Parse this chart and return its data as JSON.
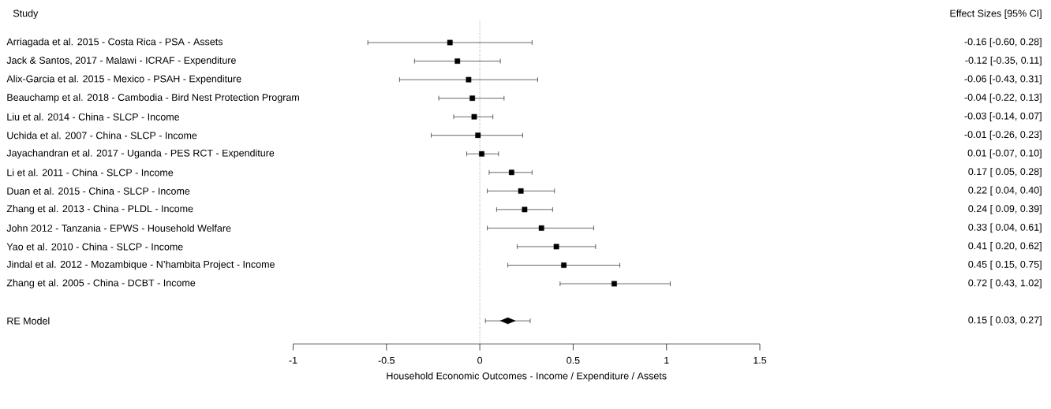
{
  "chart_data": {
    "type": "scatter",
    "orientation": "horizontal",
    "ylabel": "Study",
    "xlabel": "Household Economic Outcomes - Income / Expenditure / Assets",
    "annotations": [
      "Effect Sizes [95% CI]",
      "0.15 [ 0.03, 0.27]"
    ],
    "categories": [
      "Arriagada et al. 2015 - Costa Rica - PSA - Assets",
      "Jack & Santos, 2017 - Malawi - ICRAF - Expenditure",
      "Alix-Garcia et al. 2015 - Mexico - PSAH - Expenditure",
      "Beauchamp et al. 2018 - Cambodia - Bird Nest Protection Program",
      "Liu et al. 2014 - China - SLCP - Income",
      "Uchida et al. 2007 - China - SLCP - Income",
      "Jayachandran et al. 2017 - Uganda - PES RCT - Expenditure",
      "Li et al. 2011 - China - SLCP - Income",
      "Duan et al. 2015 - China - SLCP - Income",
      "Zhang et al. 2013 - China - PLDL - Income",
      "John 2012 - Tanzania - EPWS - Household Welfare",
      "Yao et al. 2010 - China - SLCP - Income",
      "Jindal et al. 2012 - Mozambique - N’hambita Project - Income",
      "Zhang et al. 2005 - China - DCBT - Income",
      null,
      "RE Model"
    ],
    "xlim": [
      -1,
      1.5
    ],
    "xticks": [
      -1,
      -0.5,
      0,
      0.5,
      1,
      1.5
    ],
    "ref_lines": [
      {
        "axis": "x",
        "value": 0,
        "line_style": "dotted"
      }
    ],
    "series": [
      {
        "color": "#000000",
        "marker": "square",
        "values": [
          -0.16,
          -0.12,
          -0.06,
          -0.04,
          -0.03,
          -0.01,
          0.01,
          0.17,
          0.22,
          0.24,
          0.33,
          0.41,
          0.45,
          0.72,
          null,
          null
        ],
        "errors": [
          [
            -0.6,
            0.28
          ],
          [
            -0.35,
            0.11
          ],
          [
            -0.43,
            0.31
          ],
          [
            -0.22,
            0.13
          ],
          [
            -0.14,
            0.07
          ],
          [
            -0.26,
            0.23
          ],
          [
            -0.07,
            0.1
          ],
          [
            0.05,
            0.28
          ],
          [
            0.04,
            0.4
          ],
          [
            0.09,
            0.39
          ],
          [
            0.04,
            0.61
          ],
          [
            0.2,
            0.62
          ],
          [
            0.15,
            0.75
          ],
          [
            0.43,
            1.02
          ],
          null,
          null
        ],
        "value_labels": [
          "-0.16 [-0.60, 0.28]",
          "-0.12 [-0.35, 0.11]",
          "-0.06 [-0.43, 0.31]",
          "-0.04 [-0.22, 0.13]",
          "-0.03 [-0.14, 0.07]",
          "-0.01 [-0.26, 0.23]",
          "0.01 [-0.07, 0.10]",
          "0.17 [ 0.05, 0.28]",
          "0.22 [ 0.04, 0.40]",
          "0.24 [ 0.09, 0.39]",
          "0.33 [ 0.04, 0.61]",
          "0.41 [ 0.20, 0.62]",
          "0.45 [ 0.15, 0.75]",
          "0.72 [ 0.43, 1.02]",
          null,
          null
        ]
      },
      {
        "color": "#000000",
        "marker": "diamond",
        "values": [
          null,
          null,
          null,
          null,
          null,
          null,
          null,
          null,
          null,
          null,
          null,
          null,
          null,
          null,
          null,
          0.15
        ],
        "errors": [
          null,
          null,
          null,
          null,
          null,
          null,
          null,
          null,
          null,
          null,
          null,
          null,
          null,
          null,
          null,
          [
            0.03,
            0.27
          ]
        ]
      }
    ]
  }
}
